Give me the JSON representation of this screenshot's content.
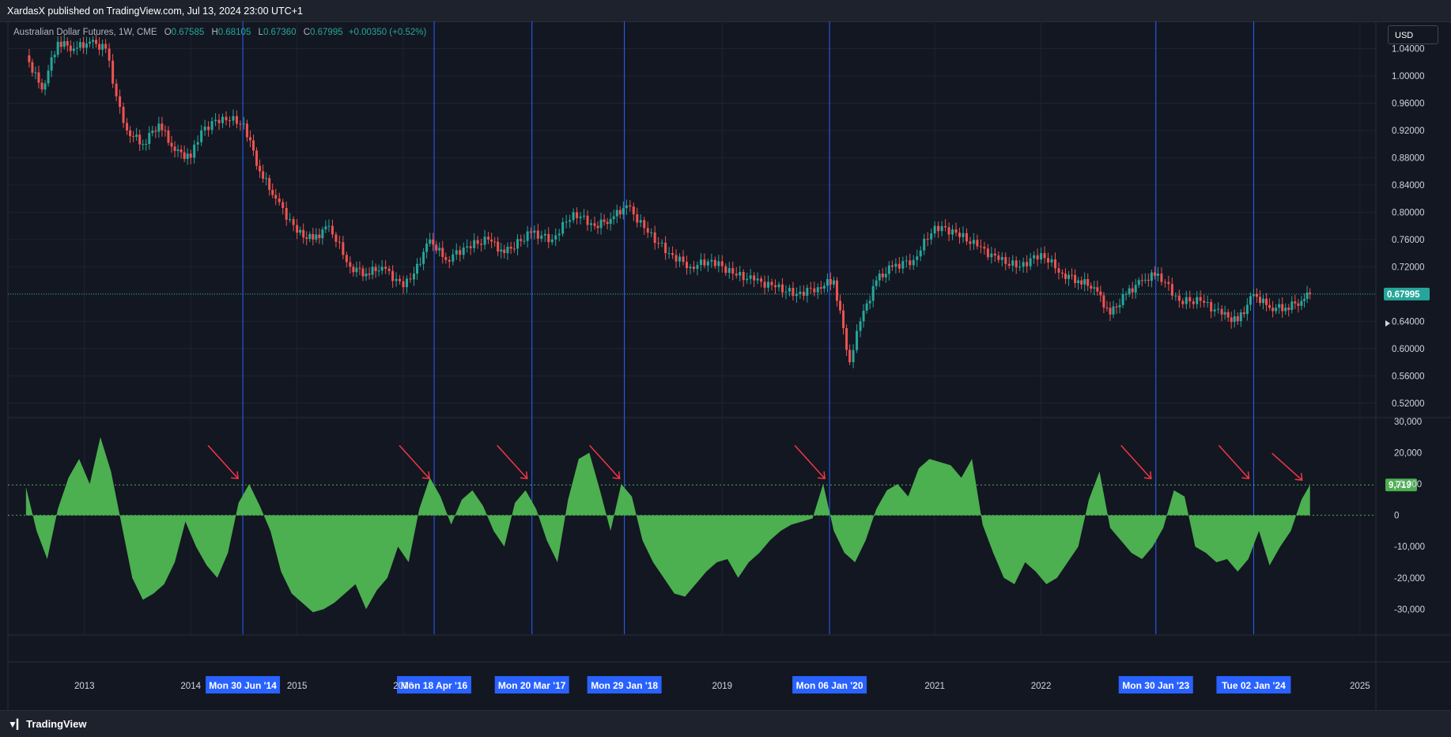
{
  "header": {
    "published": "XardasX published on TradingView.com, Jul 13, 2024 23:00 UTC+1"
  },
  "legend": {
    "symbol": "Australian Dollar Futures, 1W, CME",
    "open_label": "O",
    "open": "0.67585",
    "high_label": "H",
    "high": "0.68105",
    "low_label": "L",
    "low": "0.67360",
    "close_label": "C",
    "close": "0.67995",
    "change": "+0.00350 (+0.52%)"
  },
  "currency_button": "USD",
  "footer": {
    "brand": "TradingView"
  },
  "colors": {
    "background": "#131722",
    "up": "#26a69a",
    "down": "#ef5350",
    "indicator": "#4caf50",
    "vline": "#2962ff",
    "arrow": "#f23645"
  },
  "chart_data": [
    {
      "type": "candlestick",
      "title": "Australian Dollar Futures, 1W, CME",
      "last_price_label": "0.67995",
      "ylim": [
        0.5,
        1.08
      ],
      "y_ticks": [
        "1.04000",
        "1.00000",
        "0.96000",
        "0.92000",
        "0.88000",
        "0.84000",
        "0.80000",
        "0.76000",
        "0.72000",
        "0.68000",
        "0.64000",
        "0.60000",
        "0.56000",
        "0.52000"
      ],
      "x": [
        2012.45,
        2012.6,
        2012.75,
        2012.9,
        2013.05,
        2013.2,
        2013.3,
        2013.4,
        2013.55,
        2013.7,
        2013.85,
        2014.0,
        2014.1,
        2014.3,
        2014.5,
        2014.65,
        2014.8,
        2015.0,
        2015.15,
        2015.3,
        2015.5,
        2015.65,
        2015.8,
        2016.0,
        2016.1,
        2016.25,
        2016.4,
        2016.6,
        2016.8,
        2016.95,
        2017.2,
        2017.4,
        2017.6,
        2017.8,
        2017.95,
        2018.1,
        2018.3,
        2018.5,
        2018.7,
        2018.9,
        2019.1,
        2019.3,
        2019.5,
        2019.7,
        2019.9,
        2020.05,
        2020.2,
        2020.3,
        2020.45,
        2020.6,
        2020.8,
        2021.0,
        2021.2,
        2021.4,
        2021.6,
        2021.8,
        2022.0,
        2022.2,
        2022.35,
        2022.5,
        2022.65,
        2022.8,
        2022.95,
        2023.1,
        2023.3,
        2023.5,
        2023.7,
        2023.85,
        2024.0,
        2024.15,
        2024.3,
        2024.45,
        2024.53
      ],
      "close": [
        1.03,
        0.98,
        1.05,
        1.04,
        1.05,
        1.04,
        0.97,
        0.92,
        0.9,
        0.93,
        0.89,
        0.88,
        0.92,
        0.94,
        0.93,
        0.86,
        0.82,
        0.77,
        0.76,
        0.78,
        0.72,
        0.71,
        0.72,
        0.69,
        0.71,
        0.76,
        0.73,
        0.75,
        0.76,
        0.74,
        0.77,
        0.76,
        0.8,
        0.78,
        0.79,
        0.81,
        0.77,
        0.74,
        0.72,
        0.73,
        0.71,
        0.7,
        0.69,
        0.68,
        0.69,
        0.7,
        0.58,
        0.64,
        0.7,
        0.72,
        0.73,
        0.78,
        0.77,
        0.75,
        0.73,
        0.72,
        0.74,
        0.71,
        0.7,
        0.69,
        0.65,
        0.68,
        0.7,
        0.71,
        0.67,
        0.67,
        0.65,
        0.64,
        0.68,
        0.66,
        0.66,
        0.67,
        0.68
      ],
      "vertical_lines": [
        "Mon 30 Jun '14",
        "Mon 18 Apr '16",
        "Mon 20 Mar '17",
        "Mon 29 Jan '18",
        "Mon 06 Jan '20",
        "Mon 30 Jan '23",
        "Tue 02 Jan '24"
      ],
      "vertical_line_x": [
        2014.49,
        2016.29,
        2017.21,
        2018.08,
        2020.01,
        2023.08,
        2024.0
      ]
    },
    {
      "type": "area",
      "last_value_label": "9,719",
      "reference_level": 9719,
      "ylim": [
        -38000,
        31000
      ],
      "y_ticks": [
        "30,000",
        "20,000",
        "10,000",
        "0",
        "-10,000",
        "-20,000",
        "-30,000"
      ],
      "y_tick_values": [
        30000,
        20000,
        10000,
        0,
        -10000,
        -20000,
        -30000
      ],
      "x": [
        2012.45,
        2012.55,
        2012.65,
        2012.75,
        2012.85,
        2012.95,
        2013.05,
        2013.15,
        2013.25,
        2013.35,
        2013.45,
        2013.55,
        2013.65,
        2013.75,
        2013.85,
        2013.95,
        2014.05,
        2014.15,
        2014.25,
        2014.35,
        2014.45,
        2014.55,
        2014.65,
        2014.75,
        2014.85,
        2014.95,
        2015.05,
        2015.15,
        2015.25,
        2015.35,
        2015.45,
        2015.55,
        2015.65,
        2015.75,
        2015.85,
        2015.95,
        2016.05,
        2016.15,
        2016.25,
        2016.35,
        2016.45,
        2016.55,
        2016.65,
        2016.75,
        2016.85,
        2016.95,
        2017.05,
        2017.15,
        2017.25,
        2017.35,
        2017.45,
        2017.55,
        2017.65,
        2017.75,
        2017.85,
        2017.95,
        2018.05,
        2018.15,
        2018.25,
        2018.35,
        2018.45,
        2018.55,
        2018.65,
        2018.75,
        2018.85,
        2018.95,
        2019.05,
        2019.15,
        2019.25,
        2019.35,
        2019.45,
        2019.55,
        2019.65,
        2019.75,
        2019.85,
        2019.95,
        2020.05,
        2020.15,
        2020.25,
        2020.35,
        2020.45,
        2020.55,
        2020.65,
        2020.75,
        2020.85,
        2020.95,
        2021.05,
        2021.15,
        2021.25,
        2021.35,
        2021.45,
        2021.55,
        2021.65,
        2021.75,
        2021.85,
        2021.95,
        2022.05,
        2022.15,
        2022.25,
        2022.35,
        2022.45,
        2022.55,
        2022.65,
        2022.75,
        2022.85,
        2022.95,
        2023.05,
        2023.15,
        2023.25,
        2023.35,
        2023.45,
        2023.55,
        2023.65,
        2023.75,
        2023.85,
        2023.95,
        2024.05,
        2024.15,
        2024.25,
        2024.35,
        2024.45,
        2024.53
      ],
      "values": [
        9000,
        -5000,
        -14000,
        2000,
        12000,
        18000,
        10000,
        25000,
        14000,
        -3000,
        -20000,
        -27000,
        -25000,
        -22000,
        -15000,
        -2000,
        -10000,
        -16000,
        -20000,
        -12000,
        4000,
        10000,
        3000,
        -5000,
        -18000,
        -25000,
        -28000,
        -31000,
        -30000,
        -28000,
        -25000,
        -22000,
        -30000,
        -24000,
        -20000,
        -10000,
        -15000,
        2000,
        12000,
        6000,
        -3000,
        5000,
        8000,
        3000,
        -5000,
        -10000,
        4000,
        8000,
        2000,
        -8000,
        -15000,
        5000,
        18000,
        20000,
        8000,
        -5000,
        10000,
        6000,
        -8000,
        -15000,
        -20000,
        -25000,
        -26000,
        -22000,
        -18000,
        -15000,
        -14000,
        -20000,
        -15000,
        -12000,
        -8000,
        -5000,
        -3000,
        -2000,
        -1000,
        10000,
        -5000,
        -12000,
        -15000,
        -8000,
        2000,
        8000,
        10000,
        6000,
        15000,
        18000,
        17000,
        16000,
        12000,
        18000,
        -3000,
        -12000,
        -20000,
        -22000,
        -15000,
        -18000,
        -22000,
        -20000,
        -15000,
        -10000,
        5000,
        14000,
        -4000,
        -8000,
        -12000,
        -14000,
        -10000,
        -4000,
        8000,
        6000,
        -10000,
        -12000,
        -15000,
        -14000,
        -18000,
        -14000,
        -5000,
        -16000,
        -10000,
        -5000,
        5000,
        9719
      ]
    }
  ],
  "x_axis": {
    "ticks": [
      {
        "label": "2013",
        "x": 2013.0
      },
      {
        "label": "2014",
        "x": 2014.0
      },
      {
        "label": "2015",
        "x": 2015.0
      },
      {
        "label": "2016",
        "x": 2016.0
      },
      {
        "label": "2019",
        "x": 2019.0
      },
      {
        "label": "2021",
        "x": 2021.0
      },
      {
        "label": "2022",
        "x": 2022.0
      },
      {
        "label": "2025",
        "x": 2025.0
      }
    ],
    "xlim": [
      2012.28,
      2025.15
    ]
  }
}
